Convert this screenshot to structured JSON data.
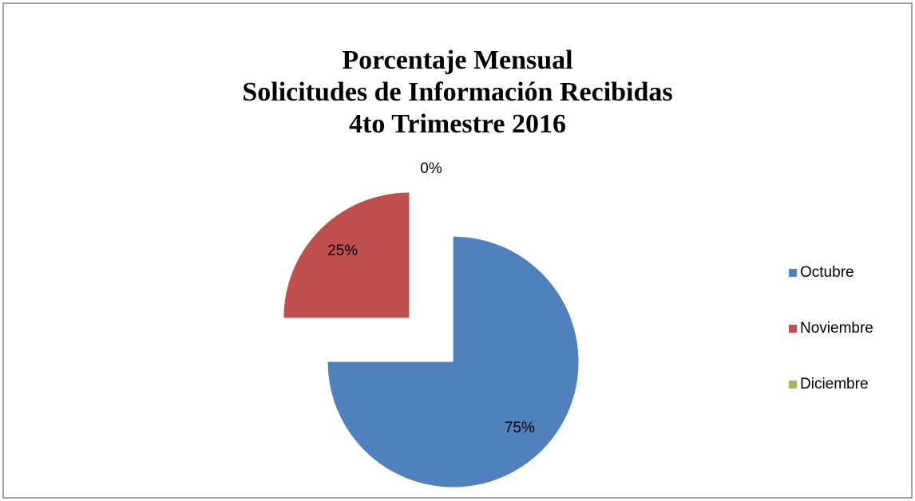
{
  "chart_data": {
    "type": "pie",
    "title": [
      "Porcentaje Mensual",
      "Solicitudes de Información Recibidas",
      "4to Trimestre 2016"
    ],
    "categories": [
      "Octubre",
      "Noviembre",
      "Diciembre"
    ],
    "values": [
      75,
      25,
      0
    ],
    "value_labels": [
      "75%",
      "25%",
      "0%"
    ],
    "colors": [
      "#4f81bd",
      "#c0504d",
      "#9bbb59"
    ],
    "exploded": true,
    "legend": "right"
  }
}
